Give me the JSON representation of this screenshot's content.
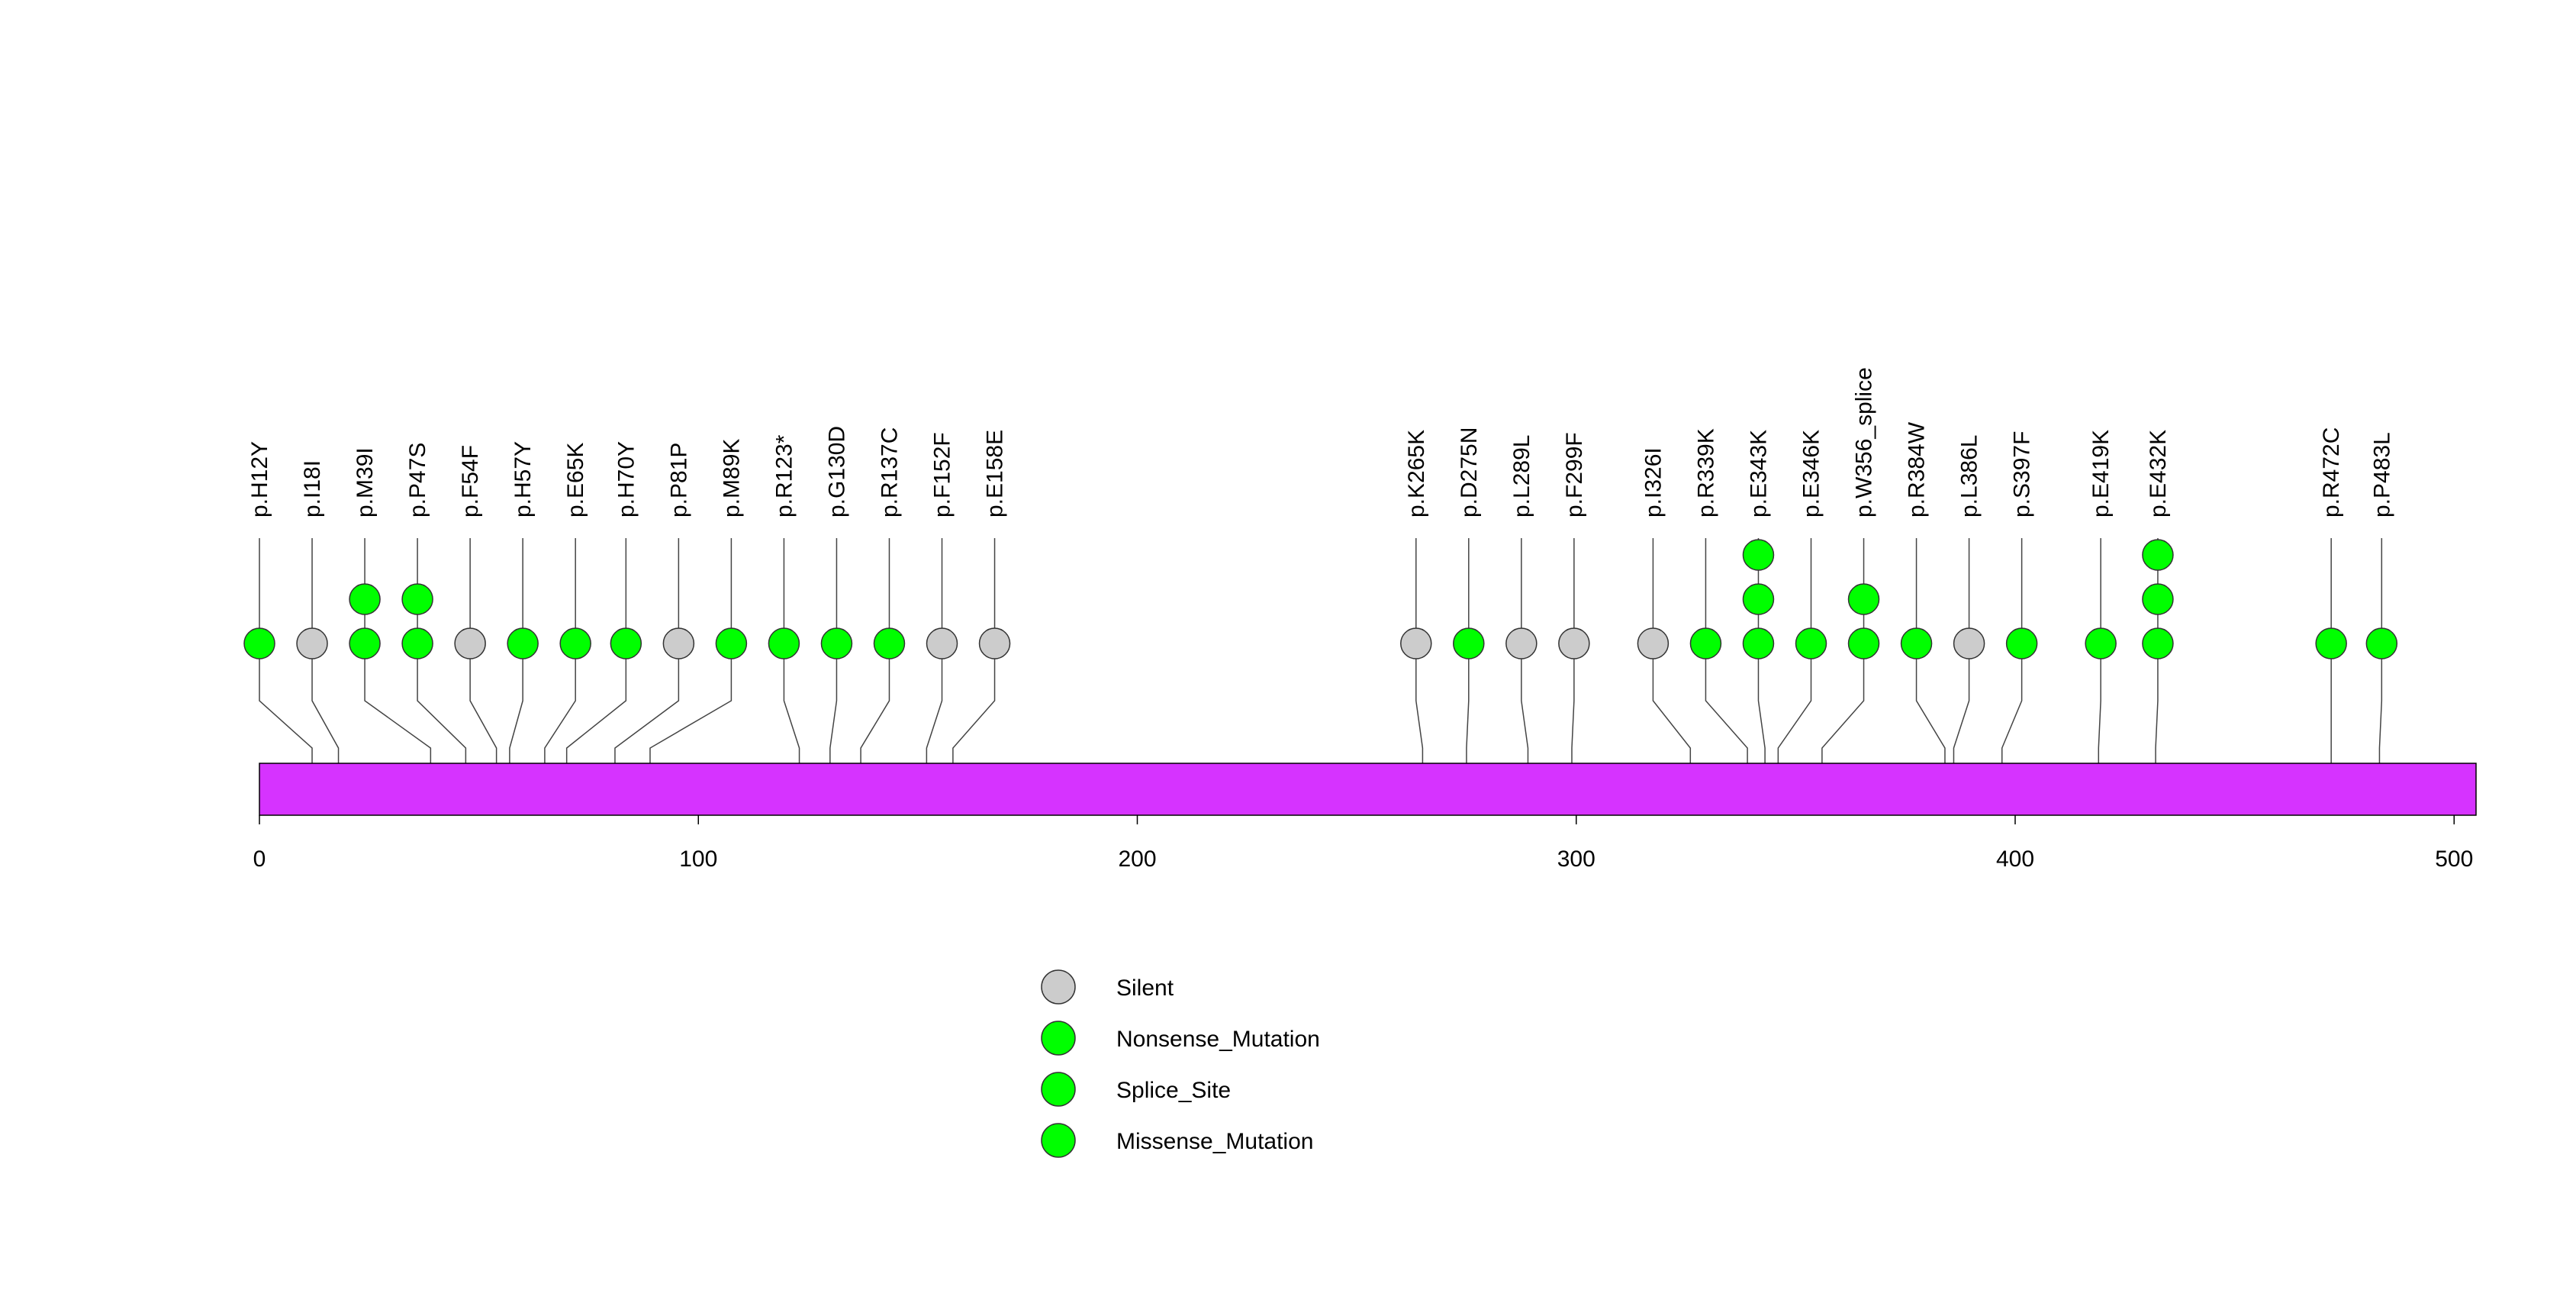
{
  "chart_data": {
    "type": "lollipop",
    "protein_length": 505,
    "x_ticks": [
      "0",
      "100",
      "200",
      "300",
      "400",
      "500"
    ],
    "x_tick_values": [
      0,
      100,
      200,
      300,
      400,
      500
    ],
    "domain_bar": {
      "start": 0,
      "end": 505,
      "color": "#D633FF"
    },
    "mutations": [
      {
        "label": "p.H12Y",
        "pos": 12,
        "plot_pos": 0,
        "count": 1,
        "type": "Missense_Mutation"
      },
      {
        "label": "p.I18I",
        "pos": 18,
        "plot_pos": 12,
        "count": 1,
        "type": "Silent"
      },
      {
        "label": "p.M39I",
        "pos": 39,
        "plot_pos": 24,
        "count": 2,
        "type": "Missense_Mutation"
      },
      {
        "label": "p.P47S",
        "pos": 47,
        "plot_pos": 36,
        "count": 2,
        "type": "Missense_Mutation"
      },
      {
        "label": "p.F54F",
        "pos": 54,
        "plot_pos": 48,
        "count": 1,
        "type": "Silent"
      },
      {
        "label": "p.H57Y",
        "pos": 57,
        "plot_pos": 60,
        "count": 1,
        "type": "Missense_Mutation"
      },
      {
        "label": "p.E65K",
        "pos": 65,
        "plot_pos": 72,
        "count": 1,
        "type": "Missense_Mutation"
      },
      {
        "label": "p.H70Y",
        "pos": 70,
        "plot_pos": 83.5,
        "count": 1,
        "type": "Missense_Mutation"
      },
      {
        "label": "p.P81P",
        "pos": 81,
        "plot_pos": 95.5,
        "count": 1,
        "type": "Silent"
      },
      {
        "label": "p.M89K",
        "pos": 89,
        "plot_pos": 107.5,
        "count": 1,
        "type": "Missense_Mutation"
      },
      {
        "label": "p.R123*",
        "pos": 123,
        "plot_pos": 119.5,
        "count": 1,
        "type": "Nonsense_Mutation"
      },
      {
        "label": "p.G130D",
        "pos": 130,
        "plot_pos": 131.5,
        "count": 1,
        "type": "Missense_Mutation"
      },
      {
        "label": "p.R137C",
        "pos": 137,
        "plot_pos": 143.5,
        "count": 1,
        "type": "Missense_Mutation"
      },
      {
        "label": "p.F152F",
        "pos": 152,
        "plot_pos": 155.5,
        "count": 1,
        "type": "Silent"
      },
      {
        "label": "p.E158E",
        "pos": 158,
        "plot_pos": 167.5,
        "count": 1,
        "type": "Silent"
      },
      {
        "label": "p.K265K",
        "pos": 265,
        "plot_pos": 263.5,
        "count": 1,
        "type": "Silent"
      },
      {
        "label": "p.D275N",
        "pos": 275,
        "plot_pos": 275.5,
        "count": 1,
        "type": "Missense_Mutation"
      },
      {
        "label": "p.L289L",
        "pos": 289,
        "plot_pos": 287.5,
        "count": 1,
        "type": "Silent"
      },
      {
        "label": "p.F299F",
        "pos": 299,
        "plot_pos": 299.5,
        "count": 1,
        "type": "Silent"
      },
      {
        "label": "p.I326I",
        "pos": 326,
        "plot_pos": 317.5,
        "count": 1,
        "type": "Silent"
      },
      {
        "label": "p.R339K",
        "pos": 339,
        "plot_pos": 329.5,
        "count": 1,
        "type": "Missense_Mutation"
      },
      {
        "label": "p.E343K",
        "pos": 343,
        "plot_pos": 341.5,
        "count": 3,
        "type": "Missense_Mutation"
      },
      {
        "label": "p.E346K",
        "pos": 346,
        "plot_pos": 353.5,
        "count": 1,
        "type": "Missense_Mutation"
      },
      {
        "label": "p.W356_splice",
        "pos": 356,
        "plot_pos": 365.5,
        "count": 2,
        "type": "Splice_Site"
      },
      {
        "label": "p.R384W",
        "pos": 384,
        "plot_pos": 377.5,
        "count": 1,
        "type": "Missense_Mutation"
      },
      {
        "label": "p.L386L",
        "pos": 386,
        "plot_pos": 389.5,
        "count": 1,
        "type": "Silent"
      },
      {
        "label": "p.S397F",
        "pos": 397,
        "plot_pos": 401.5,
        "count": 1,
        "type": "Missense_Mutation"
      },
      {
        "label": "p.E419K",
        "pos": 419,
        "plot_pos": 419.5,
        "count": 1,
        "type": "Missense_Mutation"
      },
      {
        "label": "p.E432K",
        "pos": 432,
        "plot_pos": 432.5,
        "count": 3,
        "type": "Missense_Mutation"
      },
      {
        "label": "p.R472C",
        "pos": 472,
        "plot_pos": 472,
        "count": 1,
        "type": "Missense_Mutation"
      },
      {
        "label": "p.P483L",
        "pos": 483,
        "plot_pos": 483.5,
        "count": 1,
        "type": "Missense_Mutation"
      }
    ],
    "legend": [
      {
        "label": "Silent",
        "color": "#CCCCCC"
      },
      {
        "label": "Nonsense_Mutation",
        "color": "#00FF00"
      },
      {
        "label": "Splice_Site",
        "color": "#00FF00"
      },
      {
        "label": "Missense_Mutation",
        "color": "#00FF00"
      }
    ],
    "colors": {
      "Silent": "#CCCCCC",
      "Nonsense_Mutation": "#00FF00",
      "Splice_Site": "#00FF00",
      "Missense_Mutation": "#00FF00"
    }
  }
}
